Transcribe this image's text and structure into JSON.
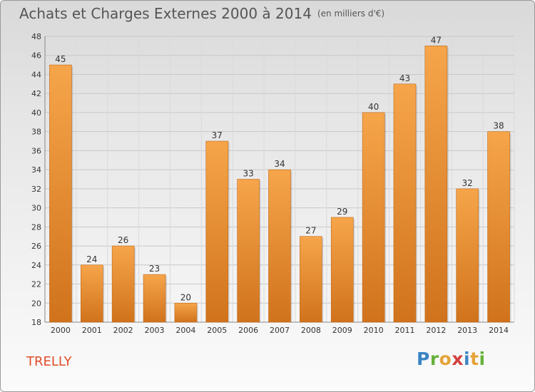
{
  "header": {
    "title": "Achats et Charges Externes 2000 à 2014",
    "unit": "(en milliers d'€)"
  },
  "footer": {
    "commune": "TRELLY",
    "logo_text": "Proxiti"
  },
  "colors": {
    "bar_top": "#f6a54a",
    "bar_bottom": "#d0731c",
    "commune_text": "#e04d2a",
    "axis_text": "#333333"
  },
  "chart_data": {
    "type": "bar",
    "title": "Achats et Charges Externes 2000 à 2014",
    "subtitle": "(en milliers d'€)",
    "categories": [
      "2000",
      "2001",
      "2002",
      "2003",
      "2004",
      "2005",
      "2006",
      "2007",
      "2008",
      "2009",
      "2010",
      "2011",
      "2012",
      "2013",
      "2014"
    ],
    "values": [
      45,
      24,
      26,
      23,
      20,
      37,
      33,
      34,
      27,
      29,
      40,
      43,
      47,
      32,
      38
    ],
    "ylim": [
      18,
      48
    ],
    "yticks": [
      18,
      20,
      22,
      24,
      26,
      28,
      30,
      32,
      34,
      36,
      38,
      40,
      42,
      44,
      46,
      48
    ],
    "grid": true,
    "legend": "none"
  }
}
